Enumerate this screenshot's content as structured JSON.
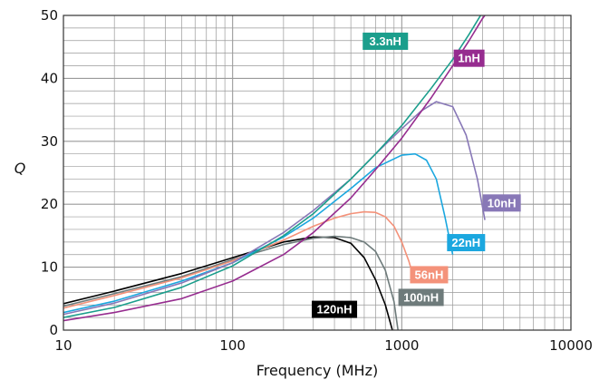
{
  "chart_data": {
    "type": "line",
    "title": "",
    "xlabel": "Frequency (MHz)",
    "ylabel": "Q",
    "xscale": "log",
    "xlim": [
      10,
      10000
    ],
    "ylim": [
      0,
      50
    ],
    "x_ticks": [
      10,
      100,
      1000,
      10000
    ],
    "x_tick_labels": [
      "10",
      "100",
      "1000",
      "10000"
    ],
    "y_ticks": [
      0,
      10,
      20,
      30,
      40,
      50
    ],
    "y_tick_labels": [
      "0",
      "10",
      "20",
      "30",
      "40",
      "50"
    ],
    "grid": true,
    "series": [
      {
        "name": "120nH",
        "color": "#000000",
        "label_at": [
          400,
          3.3
        ],
        "x": [
          10,
          20,
          50,
          100,
          200,
          300,
          400,
          500,
          600,
          700,
          800,
          880
        ],
        "y": [
          4.2,
          6.2,
          9,
          11.5,
          14,
          14.8,
          14.7,
          13.8,
          11.5,
          8,
          4,
          0
        ]
      },
      {
        "name": "100nH",
        "color": "#6e7b7b",
        "label_at": [
          1300,
          5.2
        ],
        "x": [
          10,
          20,
          50,
          100,
          200,
          300,
          400,
          500,
          600,
          700,
          800,
          900,
          950
        ],
        "y": [
          3.8,
          5.8,
          8.5,
          11.2,
          13.6,
          14.6,
          14.9,
          14.7,
          14,
          12.5,
          9.5,
          4.5,
          0
        ]
      },
      {
        "name": "56nH",
        "color": "#f4927a",
        "label_at": [
          1450,
          8.8
        ],
        "x": [
          10,
          20,
          50,
          100,
          200,
          300,
          400,
          500,
          600,
          700,
          800,
          900,
          1000,
          1100,
          1200
        ],
        "y": [
          3.5,
          5.5,
          8.3,
          11,
          14.3,
          16.5,
          17.8,
          18.5,
          18.8,
          18.7,
          18,
          16.5,
          14,
          11,
          7.5
        ]
      },
      {
        "name": "22nH",
        "color": "#1ba7df",
        "label_at": [
          2400,
          13.9
        ],
        "x": [
          10,
          20,
          50,
          100,
          200,
          300,
          500,
          700,
          1000,
          1200,
          1400,
          1600,
          1800,
          2000
        ],
        "y": [
          2.8,
          4.6,
          7.8,
          10.7,
          14.8,
          17.8,
          22.5,
          25.8,
          27.8,
          28,
          27,
          24,
          18,
          12
        ]
      },
      {
        "name": "10nH",
        "color": "#8878b7",
        "label_at": [
          3900,
          20.2
        ],
        "x": [
          10,
          20,
          50,
          100,
          200,
          300,
          500,
          700,
          1000,
          1300,
          1600,
          2000,
          2400,
          2800,
          3100
        ],
        "y": [
          2.5,
          4.3,
          7.5,
          10.7,
          15.5,
          19,
          24,
          28,
          32,
          34.8,
          36.3,
          35.5,
          31,
          24,
          17.5
        ]
      },
      {
        "name": "3.3nH",
        "color": "#1b9e8c",
        "label_at": [
          800,
          45.9
        ],
        "x": [
          10,
          20,
          50,
          100,
          200,
          300,
          500,
          700,
          1000,
          1500,
          2000,
          2500,
          3000,
          3400
        ],
        "y": [
          2,
          3.6,
          6.8,
          10.2,
          15,
          18.5,
          24,
          28,
          32.5,
          38.5,
          43,
          47,
          50.5,
          52
        ]
      },
      {
        "name": "1nH",
        "color": "#962c8f",
        "label_at": [
          2500,
          43.2
        ],
        "x": [
          10,
          20,
          50,
          100,
          200,
          300,
          500,
          700,
          1000,
          1500,
          2000,
          2500,
          3000,
          3400
        ],
        "y": [
          1.5,
          2.8,
          5,
          7.8,
          12,
          15.5,
          21,
          25.5,
          30.5,
          37,
          42,
          46,
          49.5,
          51.5
        ]
      }
    ]
  }
}
